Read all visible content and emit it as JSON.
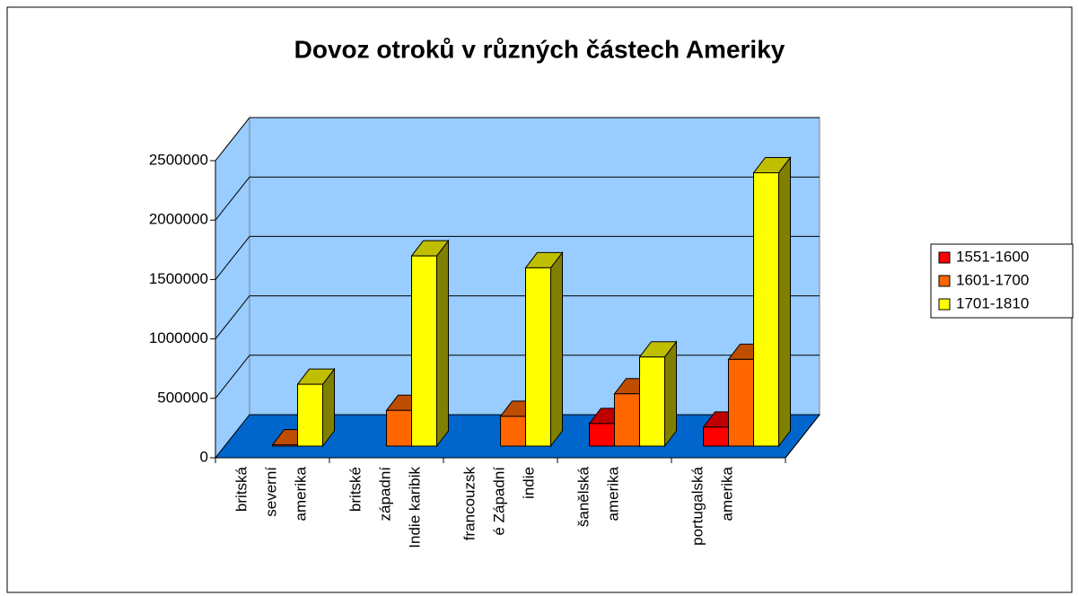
{
  "chart_data": {
    "type": "bar3d",
    "title": "Dovoz otroků v různých částech Ameriky",
    "categories": [
      [
        "britská",
        "severní",
        "amerika"
      ],
      [
        "britské",
        "západní",
        "Indie karibik"
      ],
      [
        "francouzsk",
        "é Západní",
        "indie"
      ],
      [
        "šanělská",
        "amerika"
      ],
      [
        "portugalská",
        "amerika"
      ]
    ],
    "series": [
      {
        "name": "1551-1600",
        "color": "#ff0000",
        "values": [
          null,
          null,
          null,
          190000,
          160000
        ]
      },
      {
        "name": "1601-1700",
        "color": "#ff6600",
        "values": [
          10000,
          300000,
          250000,
          440000,
          730000
        ]
      },
      {
        "name": "1701-1810",
        "color": "#ffff00",
        "values": [
          520000,
          1600000,
          1500000,
          750000,
          2300000
        ]
      }
    ],
    "ylim": [
      0,
      2500000
    ],
    "yticks": [
      0,
      500000,
      1000000,
      1500000,
      2000000,
      2500000
    ],
    "grid": true,
    "legend": "right",
    "wall_color": "#99ccff",
    "floor_color": "#0066cc"
  }
}
